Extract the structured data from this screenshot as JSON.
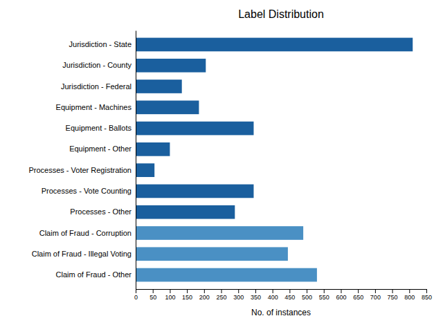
{
  "chart_data": {
    "type": "bar",
    "orientation": "horizontal",
    "title": "Label Distribution",
    "xlabel": "No. of instances",
    "categories": [
      "Jurisdiction - State",
      "Jurisdiction - County",
      "Jurisdiction - Federal",
      "Equipment - Machines",
      "Equipment - Ballots",
      "Equipment - Other",
      "Processes - Voter Registration",
      "Processes - Vote Counting",
      "Processes - Other",
      "Claim of Fraud - Corruption",
      "Claim of Fraud - Illegal Voting",
      "Claim of Fraud - Other"
    ],
    "values": [
      810,
      205,
      135,
      185,
      345,
      100,
      55,
      345,
      290,
      490,
      445,
      530
    ],
    "colors": [
      "#1a5f9e",
      "#1a5f9e",
      "#1a5f9e",
      "#1a5f9e",
      "#1a5f9e",
      "#1a5f9e",
      "#1a5f9e",
      "#1a5f9e",
      "#1a5f9e",
      "#4a90c4",
      "#4a90c4",
      "#4a90c4"
    ],
    "xlim": [
      0,
      850
    ],
    "xticks": [
      0,
      50,
      100,
      150,
      200,
      250,
      300,
      350,
      400,
      450,
      500,
      550,
      600,
      650,
      700,
      750,
      800,
      850
    ]
  }
}
